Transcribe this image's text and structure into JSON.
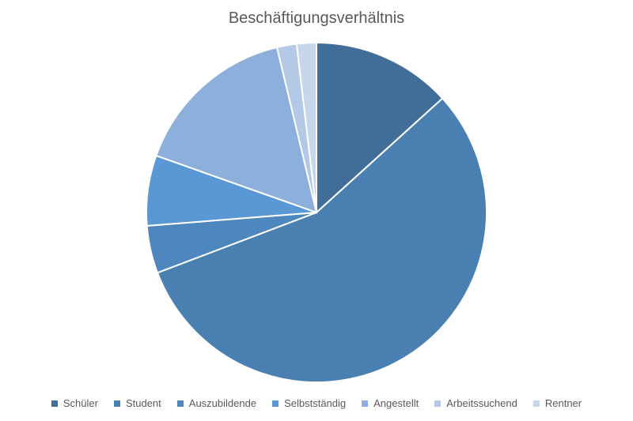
{
  "chart_data": {
    "type": "pie",
    "title": "Beschäftigungsverhältnis",
    "categories": [
      "Schüler",
      "Student",
      "Auszubildende",
      "Selbstständig",
      "Angestellt",
      "Arbeitssuchend",
      "Rentner"
    ],
    "values": [
      13.5,
      56.9,
      4.6,
      6.8,
      16.1,
      1.9,
      1.9
    ],
    "colors": [
      "#416D99",
      "#4A7FB1",
      "#4E86BE",
      "#5998D5",
      "#8CB0DB",
      "#B4C9E5",
      "#C6D7EC"
    ],
    "legend_position": "bottom"
  }
}
